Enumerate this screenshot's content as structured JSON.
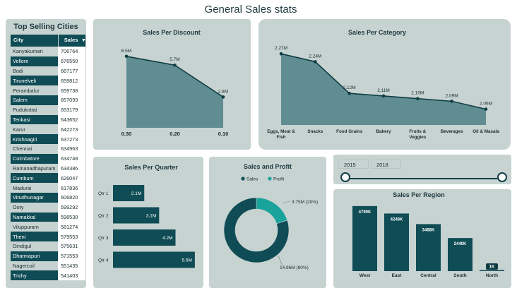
{
  "page_title": "General Sales stats",
  "colors": {
    "dark": "#0f4c55",
    "area": "#5f8d92",
    "teal": "#1aa39b",
    "panel": "#c7d3d1"
  },
  "cities": {
    "title": "Top Selling Cities",
    "col_city": "City",
    "col_sales": "Sales",
    "rows": [
      {
        "city": "Kanyakumari",
        "sales": "706764"
      },
      {
        "city": "Vellore",
        "sales": "676550"
      },
      {
        "city": "Bodi",
        "sales": "667177"
      },
      {
        "city": "Tirunelveli",
        "sales": "659812"
      },
      {
        "city": "Perambalur",
        "sales": "659738"
      },
      {
        "city": "Salem",
        "sales": "657093"
      },
      {
        "city": "Pudukottai",
        "sales": "653179"
      },
      {
        "city": "Tenkasi",
        "sales": "643652"
      },
      {
        "city": "Karur",
        "sales": "642273"
      },
      {
        "city": "Krishnagiri",
        "sales": "637273"
      },
      {
        "city": "Chennai",
        "sales": "634963"
      },
      {
        "city": "Coimbatore",
        "sales": "634748"
      },
      {
        "city": "Ramanadhapuram",
        "sales": "634386"
      },
      {
        "city": "Cumbum",
        "sales": "626047"
      },
      {
        "city": "Madurai",
        "sales": "617836"
      },
      {
        "city": "Virudhunagar",
        "sales": "606820"
      },
      {
        "city": "Ooty",
        "sales": "599292"
      },
      {
        "city": "Namakkal",
        "sales": "598530"
      },
      {
        "city": "Viluppuram",
        "sales": "581274"
      },
      {
        "city": "Theni",
        "sales": "579553"
      },
      {
        "city": "Dindigul",
        "sales": "575631"
      },
      {
        "city": "Dharmapuri",
        "sales": "571553"
      },
      {
        "city": "Nagercoil",
        "sales": "551435"
      },
      {
        "city": "Trichy",
        "sales": "541403"
      }
    ]
  },
  "years": {
    "from": "2015",
    "to": "2018"
  },
  "chart_data": [
    {
      "id": "discount",
      "type": "area",
      "title": "Sales Per Discount",
      "categories": [
        "0.30",
        "0.20",
        "0.10"
      ],
      "values": [
        6.5,
        5.7,
        2.8
      ],
      "labels": [
        "6.5M",
        "5.7M",
        "2.8M"
      ],
      "ylim": [
        0,
        7
      ]
    },
    {
      "id": "category",
      "type": "area",
      "title": "Sales Per Category",
      "categories": [
        "Eggs, Meat & Fish",
        "Snacks",
        "Food Grains",
        "Bakery",
        "Fruits & Veggies",
        "Beverages",
        "Oil & Masala"
      ],
      "values": [
        2.27,
        2.24,
        2.12,
        2.11,
        2.1,
        2.09,
        2.06
      ],
      "labels": [
        "2.27M",
        "2.24M",
        "2.12M",
        "2.11M",
        "2.10M",
        "2.09M",
        "2.06M"
      ],
      "ylim": [
        2.0,
        2.3
      ]
    },
    {
      "id": "quarter",
      "type": "bar",
      "orientation": "horizontal",
      "title": "Sales Per Quarter",
      "categories": [
        "Qtr 1",
        "Qtr 2",
        "Qtr 3",
        "Qtr 4"
      ],
      "values": [
        2.1,
        3.1,
        4.2,
        5.5
      ],
      "labels": [
        "2.1M",
        "3.1M",
        "4.2M",
        "5.5M"
      ],
      "xlim": [
        0,
        5.6
      ]
    },
    {
      "id": "profit",
      "type": "pie",
      "title": "Sales and Profit",
      "legend": [
        "Sales",
        "Profit"
      ],
      "values": [
        14.96,
        3.75
      ],
      "labels": [
        "14.96M (80%)",
        "3.75M (20%)"
      ]
    },
    {
      "id": "region",
      "type": "bar",
      "title": "Sales Per Region",
      "categories": [
        "West",
        "East",
        "Central",
        "South",
        "North"
      ],
      "values": [
        4799,
        4248,
        3468,
        2440,
        1
      ],
      "labels": [
        "4799K",
        "4248K",
        "3468K",
        "2440K",
        "1K"
      ],
      "ylim": [
        0,
        5000
      ]
    }
  ]
}
